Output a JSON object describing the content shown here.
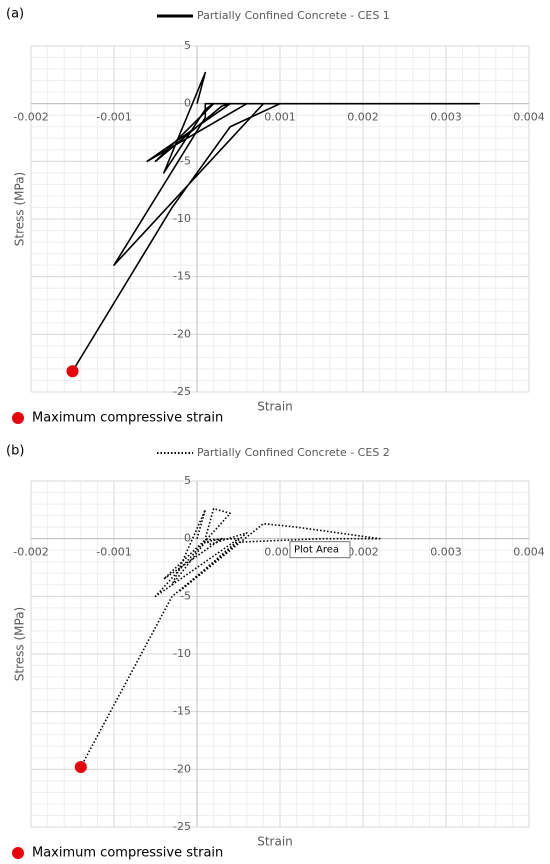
{
  "chart_data": [
    {
      "type": "line",
      "panel_label": "(a)",
      "x_label": "Strain",
      "y_label": "Stress (MPa)",
      "xlim": [
        -0.002,
        0.004
      ],
      "xticks": [
        -0.002,
        -0.001,
        0.001,
        0.002,
        0.003,
        0.004
      ],
      "ylim": [
        -25,
        5
      ],
      "yticks": [
        5,
        0,
        -5,
        -10,
        -15,
        -20,
        -25
      ],
      "grid": true,
      "minor_grid_divisions": 5,
      "series": [
        {
          "name": "Partially Confined Concrete - CES 1",
          "color": "#000000",
          "dash": "solid",
          "mode": "lines",
          "x": [
            0,
            0.0001,
            -0.0004,
            0.0001,
            0.0002,
            -0.0005,
            0.0003,
            0.0004,
            -0.0006,
            0.0006,
            0.0008,
            -0.001,
            0.0001,
            0.0001,
            0.0015,
            0.0034,
            0.0015,
            0.001,
            0.0004,
            -0.0003,
            -0.0015
          ],
          "values": [
            0,
            2.7,
            -6,
            -0.5,
            0,
            -5,
            -0.2,
            0,
            -5,
            0,
            0,
            -14,
            -1.2,
            0,
            0,
            0,
            0,
            0,
            -2,
            -9,
            -23.2
          ]
        },
        {
          "name": "Maximum compressive strain",
          "color": "#e8000b",
          "mode": "markers",
          "x": [
            -0.0015
          ],
          "values": [
            -23.2
          ]
        }
      ]
    },
    {
      "type": "line",
      "panel_label": "(b)",
      "x_label": "Strain",
      "y_label": "Stress (MPa)",
      "annotation": "Plot Area",
      "xlim": [
        -0.002,
        0.004
      ],
      "xticks": [
        -0.002,
        -0.001,
        0.001,
        0.002,
        0.003,
        0.004
      ],
      "ylim": [
        -25,
        5
      ],
      "yticks": [
        5,
        0,
        -5,
        -10,
        -15,
        -20,
        -25
      ],
      "grid": true,
      "minor_grid_divisions": 5,
      "series": [
        {
          "name": "Partially Confined Concrete - CES 2",
          "color": "#000000",
          "dash": "dotted",
          "mode": "lines",
          "x": [
            0,
            0.0001,
            -0.0003,
            0.0001,
            0.0003,
            -0.0004,
            0.0001,
            0.0005,
            -0.0005,
            0.0004,
            0.0002,
            0.0001,
            0.00015,
            0.0006,
            -0.0002,
            0.0008,
            0.0012,
            0.0022,
            0.0015,
            0.0005,
            -0.0003,
            -0.0014
          ],
          "values": [
            0,
            2.5,
            -4,
            -0.3,
            0,
            -3.5,
            -0.1,
            0,
            -5,
            2.2,
            2.6,
            0,
            -0.5,
            0.5,
            -4.5,
            1.3,
            1,
            0,
            0,
            -0.3,
            -5,
            -19.8
          ]
        },
        {
          "name": "Maximum compressive strain",
          "color": "#e8000b",
          "mode": "markers",
          "x": [
            -0.0014
          ],
          "values": [
            -19.8
          ]
        }
      ]
    }
  ]
}
